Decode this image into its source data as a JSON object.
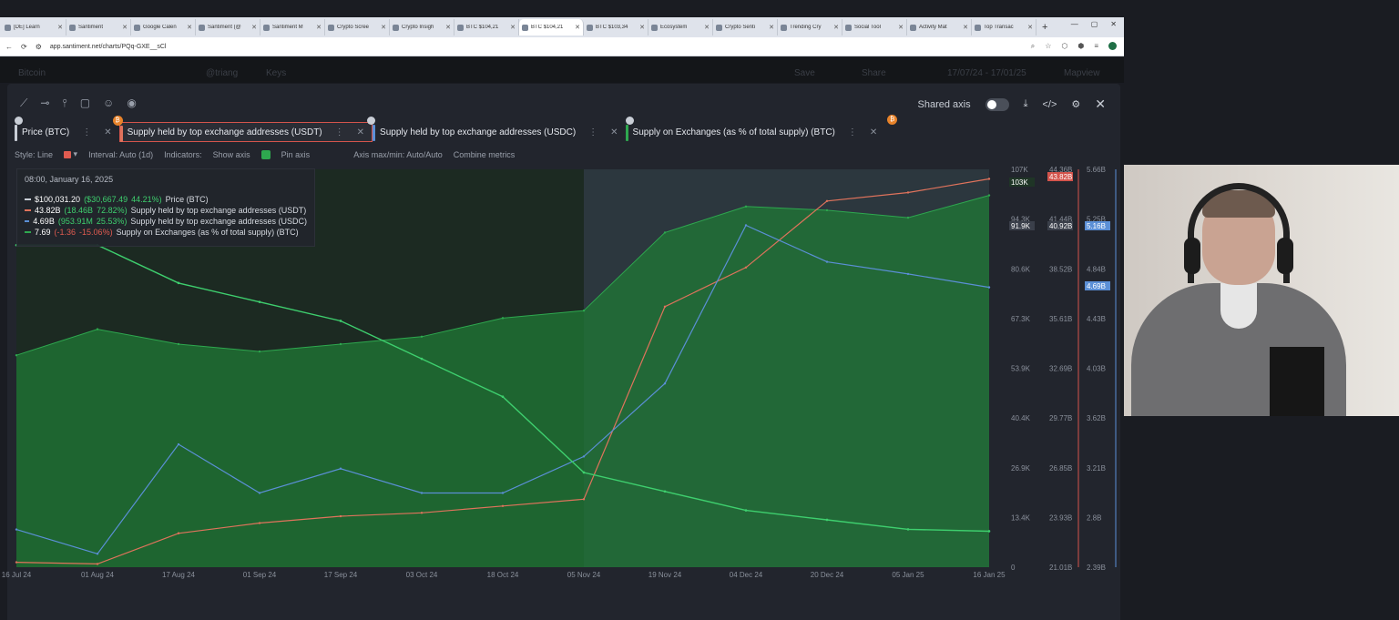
{
  "browser": {
    "tabs": [
      {
        "title": "[DE] Learn"
      },
      {
        "title": "Santiment"
      },
      {
        "title": "Google Calen"
      },
      {
        "title": "Santiment (@"
      },
      {
        "title": "Santiment M"
      },
      {
        "title": "Crypto Scree"
      },
      {
        "title": "Crypto Insigh"
      },
      {
        "title": "BTC $104,21"
      },
      {
        "title": "BTC $104,21"
      },
      {
        "title": "BTC $103,34"
      },
      {
        "title": "Ecosystem"
      },
      {
        "title": "Crypto Senti"
      },
      {
        "title": "Trending Cry"
      },
      {
        "title": "Social Tool"
      },
      {
        "title": "Activity Mat"
      },
      {
        "title": "Top Transac"
      }
    ],
    "active_tab_index": 8,
    "url": "app.santiment.net/charts/PQq-GXE__sCl"
  },
  "background": {
    "asset": "Bitcoin",
    "user": "@triang",
    "keys": "Keys",
    "save": "Save",
    "share": "Share",
    "range": "17/07/24 - 17/01/25",
    "mapview": "Mapview"
  },
  "modal": {
    "shared_axis_label": "Shared axis",
    "metrics": [
      {
        "label": "Price (BTC)",
        "color": "#c9ced6"
      },
      {
        "label": "Supply held by top exchange addresses (USDT)",
        "color": "#e0735c"
      },
      {
        "label": "Supply held by top exchange addresses (USDC)",
        "color": "#5b8fd6"
      },
      {
        "label": "Supply on Exchanges (as % of total supply) (BTC)",
        "color": "#2ea84f"
      }
    ],
    "settings": {
      "style": "Style: Line",
      "interval": "Interval: Auto (1d)",
      "indicators": "Indicators:",
      "show_axis": "Show axis",
      "pin_axis": "Pin axis",
      "axis_minmax": "Axis max/min: Auto/Auto",
      "combine": "Combine metrics"
    },
    "tooltip": {
      "date": "08:00, January 16, 2025",
      "rows": [
        {
          "value": "$100,031.20",
          "change": "($30,667.49",
          "pct": "44.21%)",
          "name": "Price (BTC)",
          "color": "#c9ced6",
          "sign": "pos"
        },
        {
          "value": "43.82B",
          "change": "(18.46B",
          "pct": "72.82%)",
          "name": "Supply held by top exchange addresses (USDT)",
          "color": "#e0735c",
          "sign": "pos"
        },
        {
          "value": "4.69B",
          "change": "(953.91M",
          "pct": "25.53%)",
          "name": "Supply held by top exchange addresses (USDC)",
          "color": "#5b8fd6",
          "sign": "pos"
        },
        {
          "value": "7.69",
          "change": "(-1.36",
          "pct": "-15.06%)",
          "name": "Supply on Exchanges (as % of total supply) (BTC)",
          "color": "#2ea84f",
          "sign": "neg"
        }
      ]
    }
  },
  "chart_data": {
    "type": "line",
    "x": [
      "16 Jul 24",
      "01 Aug 24",
      "17 Aug 24",
      "01 Sep 24",
      "17 Sep 24",
      "03 Oct 24",
      "18 Oct 24",
      "05 Nov 24",
      "19 Nov 24",
      "04 Dec 24",
      "20 Dec 24",
      "05 Jan 25",
      "16 Jan 25"
    ],
    "highlight_x": [
      "05 Nov 24",
      "16 Jan 25"
    ],
    "axes": [
      {
        "name": "Price (BTC)",
        "ticks": [
          "107K",
          "94.3K",
          "80.6K",
          "67.3K",
          "53.9K",
          "40.4K",
          "26.9K",
          "13.4K",
          "0"
        ],
        "markers": [
          "103K",
          "91.9K"
        ]
      },
      {
        "name": "USDT",
        "ticks": [
          "44.36B",
          "41.44B",
          "38.52B",
          "35.61B",
          "32.69B",
          "29.77B",
          "26.85B",
          "23.93B",
          "21.01B"
        ],
        "markers": [
          "43.82B",
          "40.92B"
        ]
      },
      {
        "name": "USDC",
        "ticks": [
          "5.66B",
          "5.25B",
          "4.84B",
          "4.43B",
          "4.03B",
          "3.62B",
          "3.21B",
          "2.8B",
          "2.39B"
        ],
        "markers": [
          "5.16B",
          "4.69B"
        ]
      }
    ],
    "series": [
      {
        "name": "Price (BTC)",
        "color": "#2ea84f",
        "values": [
          57,
          64,
          60,
          58,
          60,
          62,
          67,
          69,
          90,
          97,
          96,
          94,
          100
        ]
      },
      {
        "name": "Supply held by top exchange addresses (USDT)",
        "color": "#e0735c",
        "values": [
          21.3,
          21.2,
          23.0,
          23.6,
          24.0,
          24.2,
          24.6,
          25.0,
          36.3,
          38.6,
          42.5,
          43.0,
          43.8
        ]
      },
      {
        "name": "Supply held by top exchange addresses (USDC)",
        "color": "#5b8fd6",
        "values": [
          2.7,
          2.5,
          3.4,
          3.0,
          3.2,
          3.0,
          3.0,
          3.3,
          3.9,
          5.2,
          4.9,
          4.8,
          4.69
        ]
      },
      {
        "name": "Supply on Exchanges (as % of total supply) (BTC)",
        "color": "#3ecf6e",
        "values": [
          9.2,
          9.2,
          9.0,
          8.9,
          8.8,
          8.6,
          8.4,
          8.0,
          7.9,
          7.8,
          7.75,
          7.7,
          7.69
        ]
      }
    ]
  }
}
